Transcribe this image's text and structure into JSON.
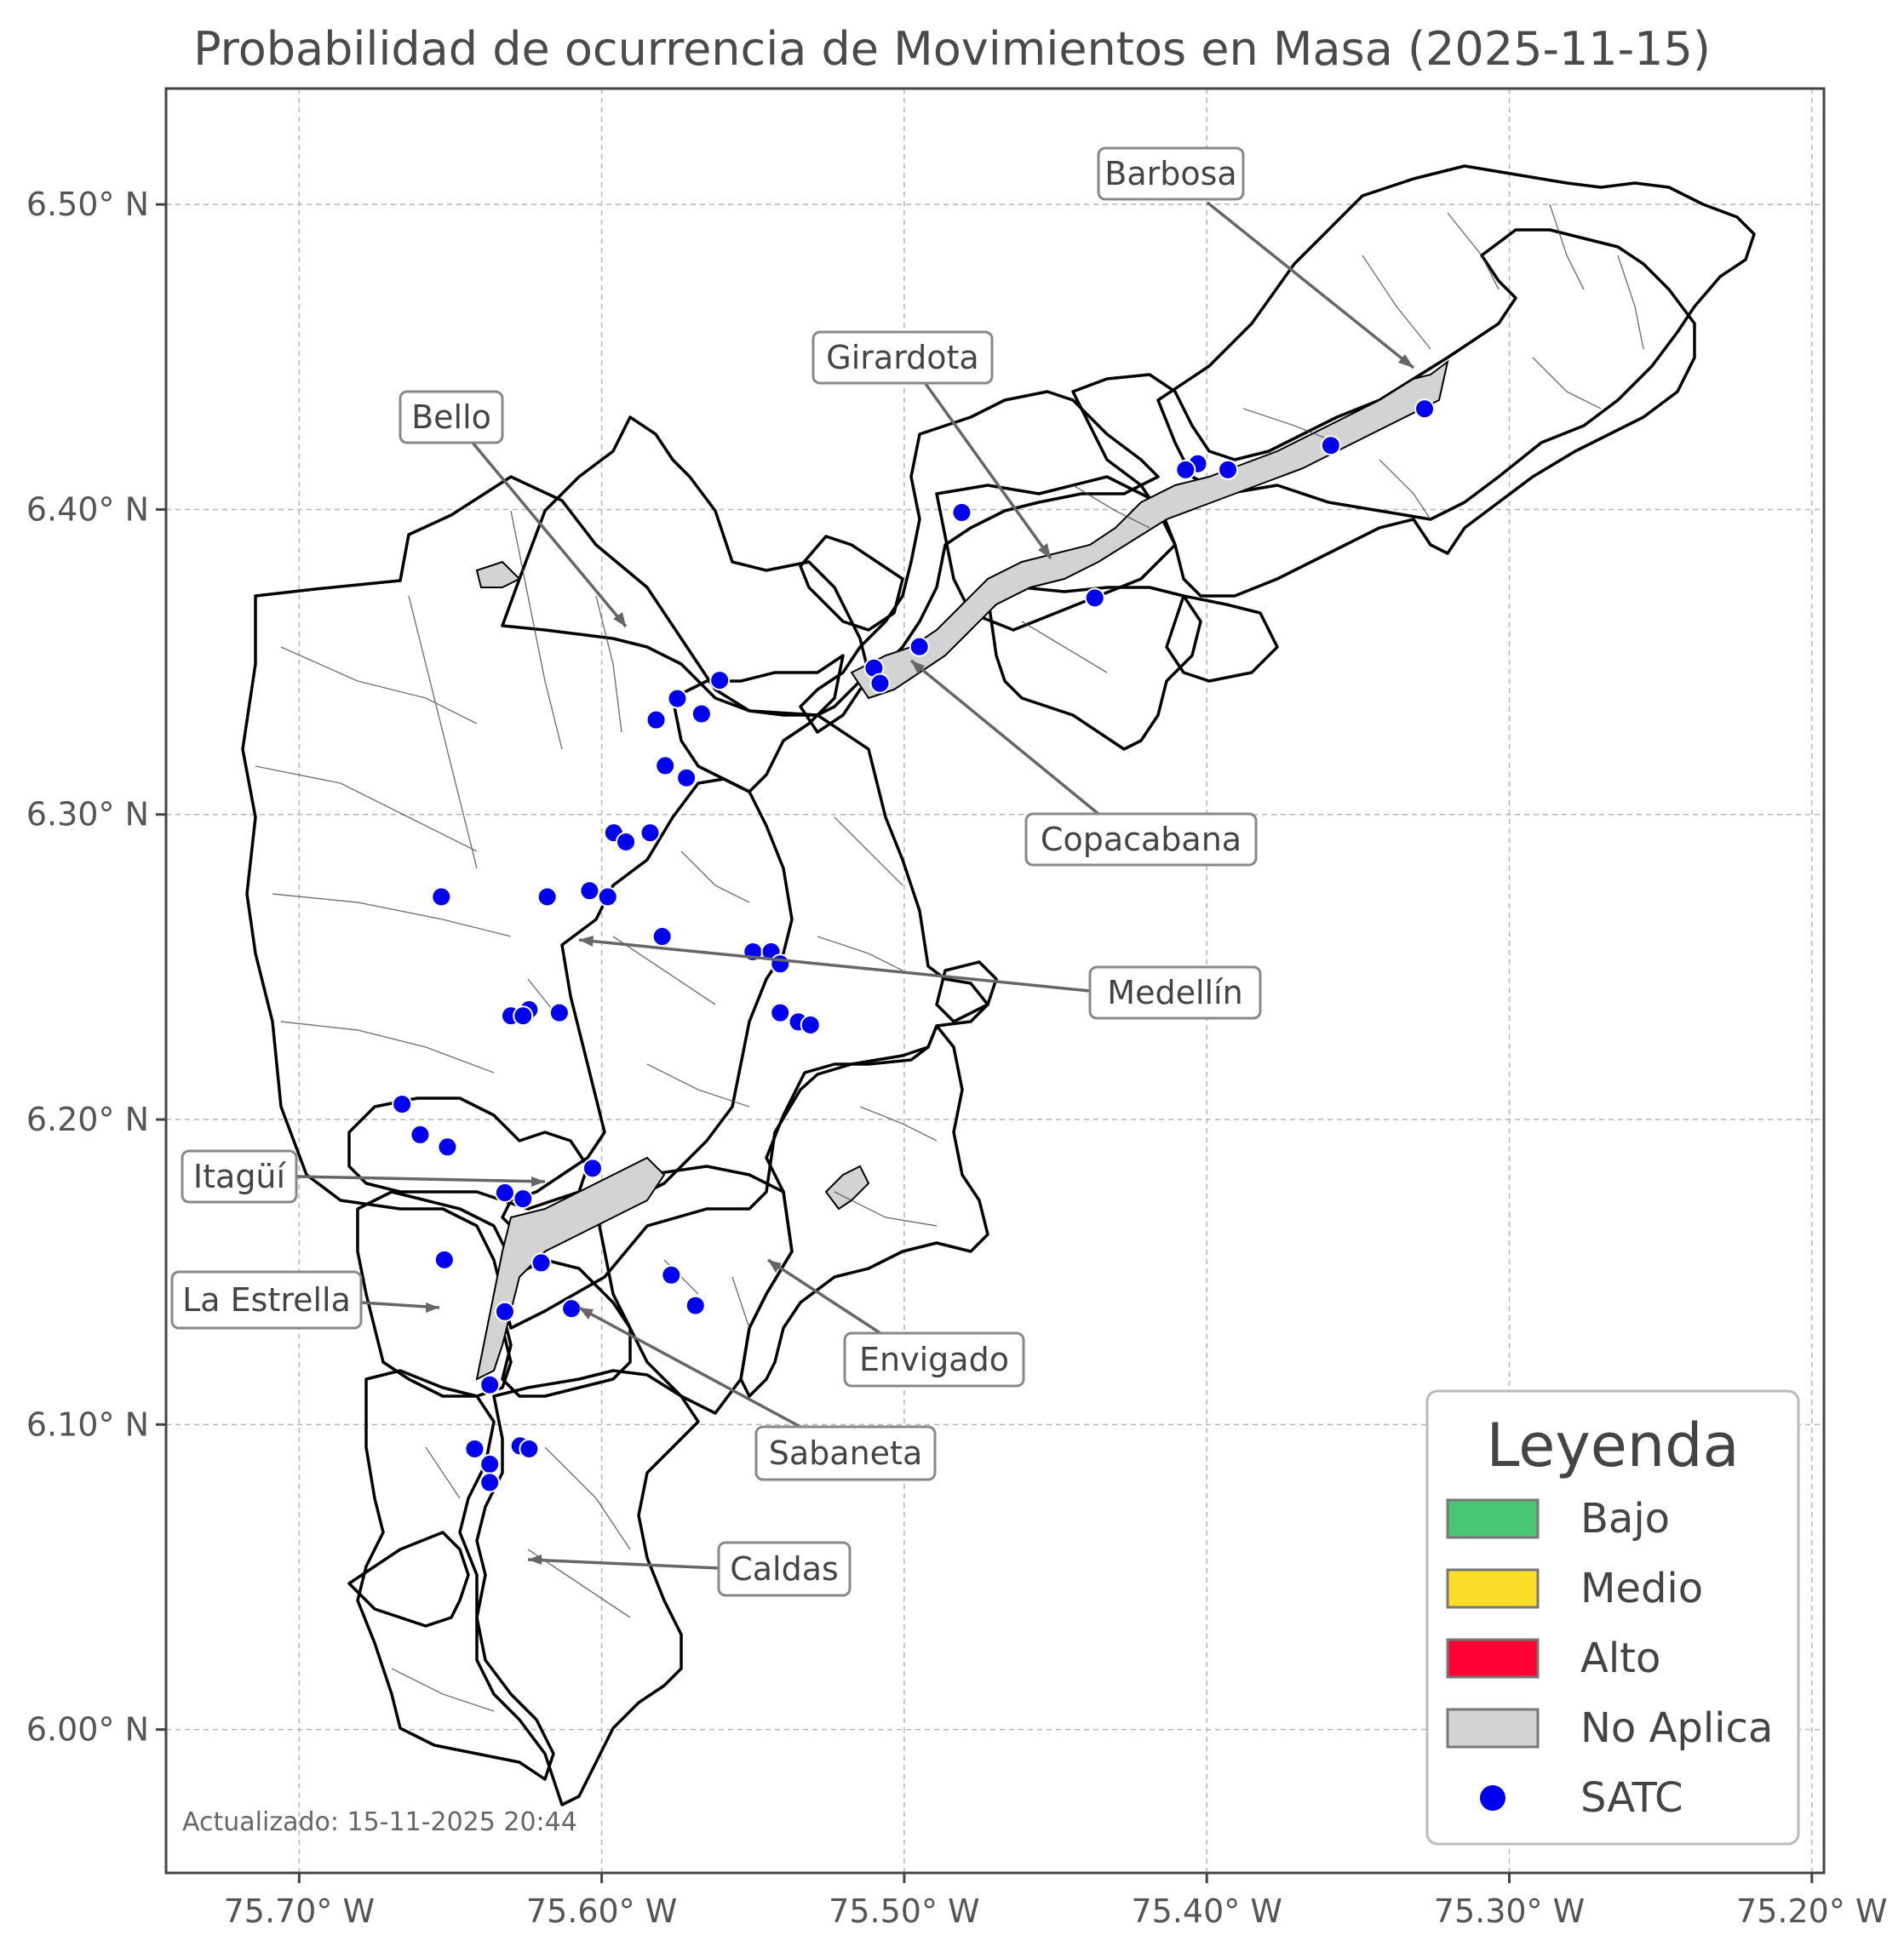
{
  "title": "Probabilidad de ocurrencia de Movimientos en Masa (2025-11-15)",
  "x_ticks": [
    {
      "value": -75.7,
      "label": "75.70° W"
    },
    {
      "value": -75.6,
      "label": "75.60° W"
    },
    {
      "value": -75.5,
      "label": "75.50° W"
    },
    {
      "value": -75.4,
      "label": "75.40° W"
    },
    {
      "value": -75.3,
      "label": "75.30° W"
    },
    {
      "value": -75.2,
      "label": "75.20° W"
    }
  ],
  "y_ticks": [
    {
      "value": 6.5,
      "label": "6.50° N"
    },
    {
      "value": 6.4,
      "label": "6.40° N"
    },
    {
      "value": 6.3,
      "label": "6.30° N"
    },
    {
      "value": 6.2,
      "label": "6.20° N"
    },
    {
      "value": 6.1,
      "label": "6.10° N"
    },
    {
      "value": 6.0,
      "label": "6.00° N"
    }
  ],
  "extent": {
    "lon_min": -75.744,
    "lon_max": -75.196,
    "lat_min": 5.953,
    "lat_max": 6.538
  },
  "grid": true,
  "colors": {
    "bajo": "#48c774",
    "medio": "#fbdd28",
    "alto": "#fe0333",
    "no_aplica": "#d3d3d3",
    "satc": "#0000ee"
  },
  "legend": {
    "title": "Leyenda",
    "position": "bottom-right",
    "items": [
      {
        "label": "Bajo",
        "color": "#48c774",
        "kind": "patch"
      },
      {
        "label": "Medio",
        "color": "#fbdd28",
        "kind": "patch"
      },
      {
        "label": "Alto",
        "color": "#fe0333",
        "kind": "patch"
      },
      {
        "label": "No Aplica",
        "color": "#d3d3d3",
        "kind": "patch"
      },
      {
        "label": "SATC",
        "color": "#0000ee",
        "kind": "point"
      }
    ]
  },
  "municipalities": [
    {
      "name": "Barbosa",
      "lon": -75.331,
      "lat": 6.445
    },
    {
      "name": "Girardota",
      "lon": -75.446,
      "lat": 6.381
    },
    {
      "name": "Bello",
      "lon": -75.591,
      "lat": 6.36
    },
    {
      "name": "Copacabana",
      "lon": -75.497,
      "lat": 6.353
    },
    {
      "name": "Medellín",
      "lon": -75.61,
      "lat": 6.26
    },
    {
      "name": "Itagüí",
      "lon": -75.621,
      "lat": 6.178
    },
    {
      "name": "La Estrella",
      "lon": -75.651,
      "lat": 6.138
    },
    {
      "name": "Envigado",
      "lon": -75.545,
      "lat": 6.153
    },
    {
      "name": "Sabaneta",
      "lon": -75.611,
      "lat": 6.137
    },
    {
      "name": "Caldas",
      "lon": -75.624,
      "lat": 6.054
    }
  ],
  "satc_stations": [
    [
      -75.328,
      6.433
    ],
    [
      -75.359,
      6.421
    ],
    [
      -75.393,
      6.413
    ],
    [
      -75.403,
      6.415
    ],
    [
      -75.407,
      6.413
    ],
    [
      -75.481,
      6.399
    ],
    [
      -75.437,
      6.371
    ],
    [
      -75.495,
      6.355
    ],
    [
      -75.51,
      6.348
    ],
    [
      -75.508,
      6.343
    ],
    [
      -75.561,
      6.344
    ],
    [
      -75.567,
      6.333
    ],
    [
      -75.575,
      6.338
    ],
    [
      -75.582,
      6.331
    ],
    [
      -75.579,
      6.316
    ],
    [
      -75.572,
      6.312
    ],
    [
      -75.584,
      6.294
    ],
    [
      -75.596,
      6.294
    ],
    [
      -75.592,
      6.291
    ],
    [
      -75.653,
      6.273
    ],
    [
      -75.618,
      6.273
    ],
    [
      -75.604,
      6.275
    ],
    [
      -75.598,
      6.273
    ],
    [
      -75.58,
      6.26
    ],
    [
      -75.55,
      6.255
    ],
    [
      -75.544,
      6.255
    ],
    [
      -75.541,
      6.251
    ],
    [
      -75.541,
      6.235
    ],
    [
      -75.535,
      6.232
    ],
    [
      -75.531,
      6.231
    ],
    [
      -75.624,
      6.236
    ],
    [
      -75.63,
      6.234
    ],
    [
      -75.626,
      6.234
    ],
    [
      -75.614,
      6.235
    ],
    [
      -75.666,
      6.205
    ],
    [
      -75.66,
      6.195
    ],
    [
      -75.651,
      6.191
    ],
    [
      -75.632,
      6.176
    ],
    [
      -75.626,
      6.174
    ],
    [
      -75.603,
      6.184
    ],
    [
      -75.652,
      6.154
    ],
    [
      -75.62,
      6.153
    ],
    [
      -75.577,
      6.149
    ],
    [
      -75.569,
      6.139
    ],
    [
      -75.61,
      6.138
    ],
    [
      -75.632,
      6.137
    ],
    [
      -75.637,
      6.113
    ],
    [
      -75.642,
      6.092
    ],
    [
      -75.627,
      6.093
    ],
    [
      -75.624,
      6.092
    ],
    [
      -75.637,
      6.087
    ],
    [
      -75.637,
      6.081
    ]
  ],
  "updated_text": "Actualizado: 15-11-2025 20:44"
}
